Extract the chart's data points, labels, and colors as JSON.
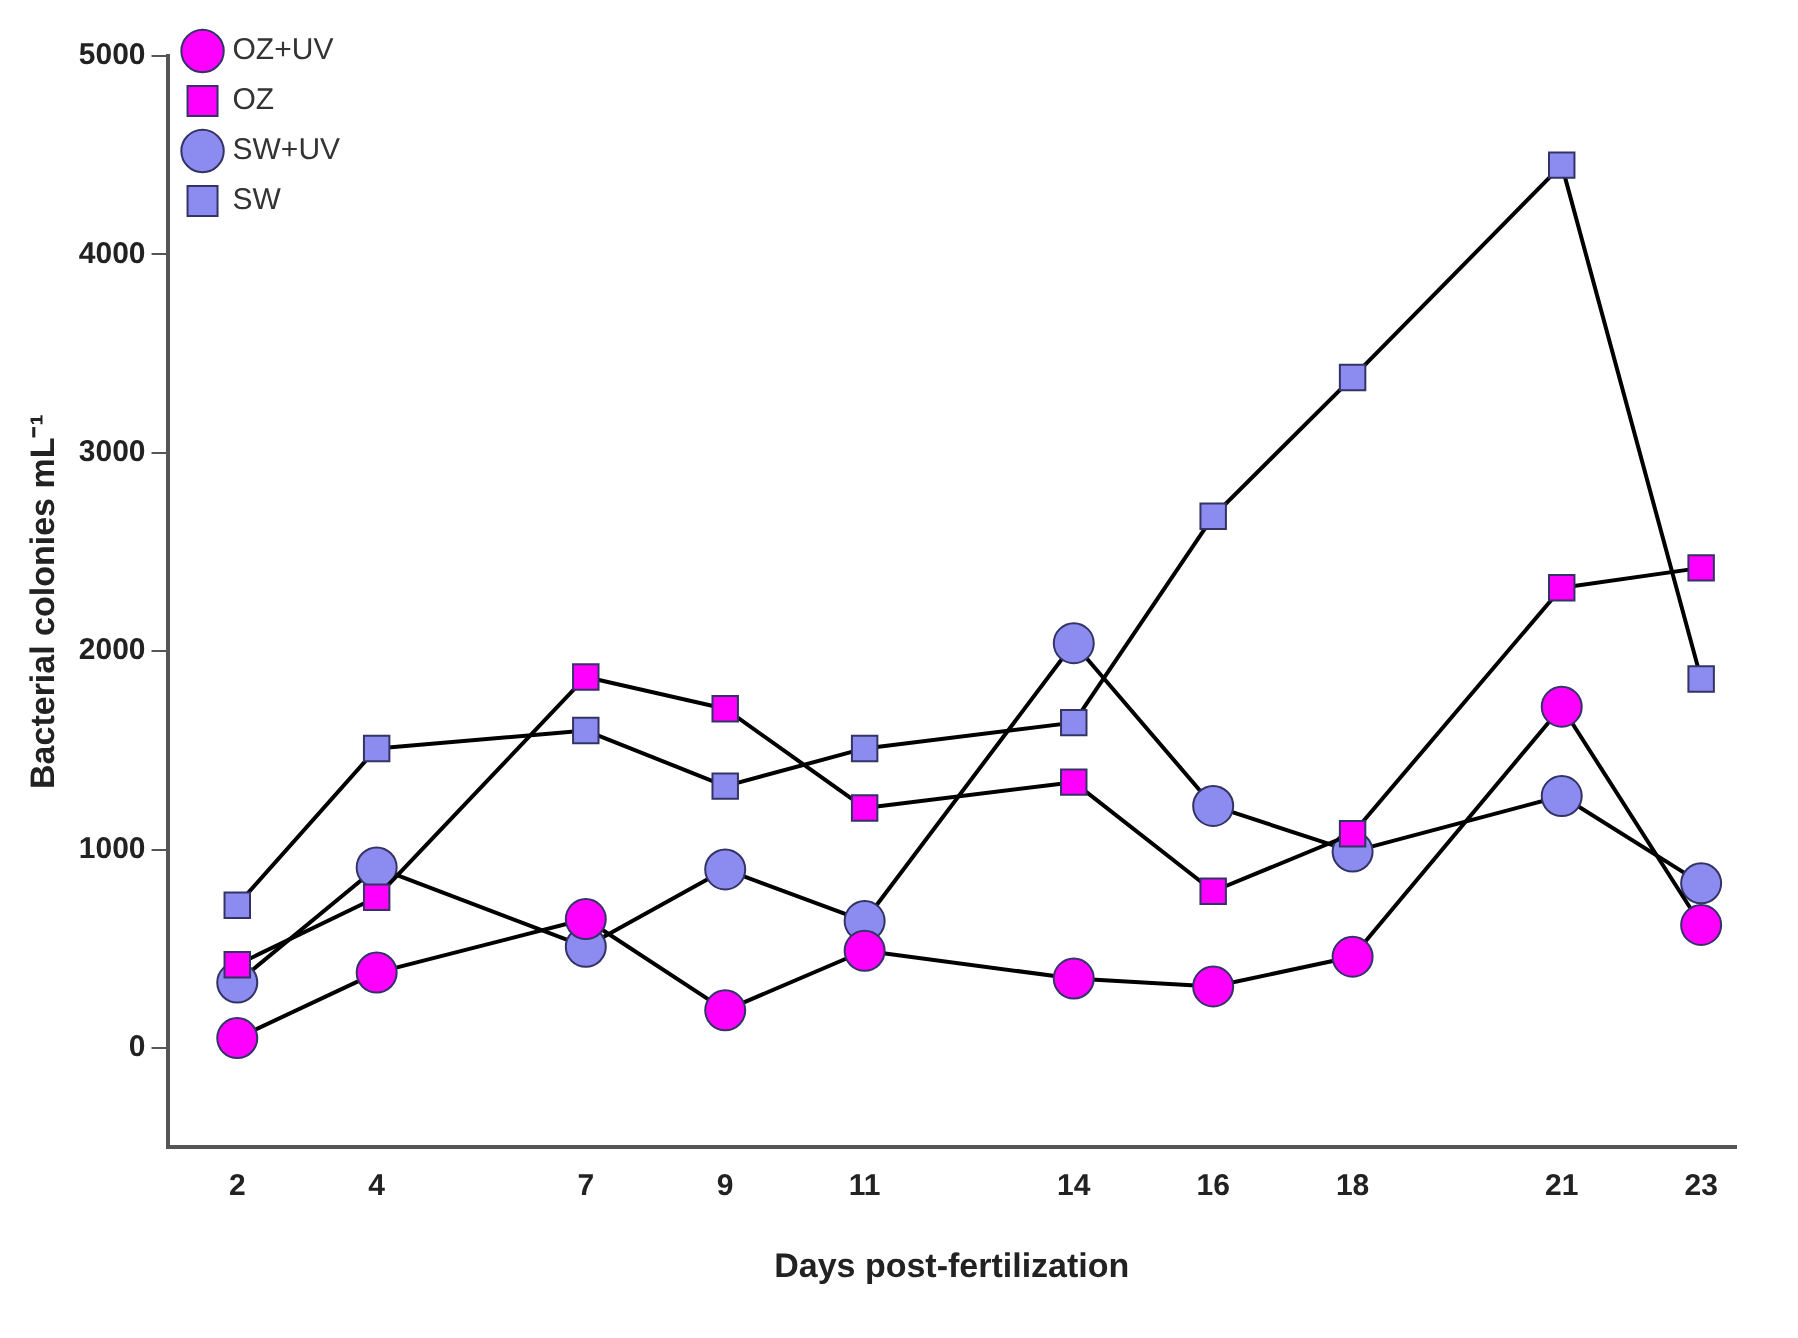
{
  "chart_data": {
    "type": "line",
    "xlabel": "Days post-fertilization",
    "ylabel": "Bacterial colonies mL⁻¹",
    "x": [
      2,
      4,
      7,
      9,
      11,
      14,
      16,
      18,
      21,
      23
    ],
    "xlim": [
      1,
      23.5
    ],
    "xticks": [
      2,
      4,
      7,
      9,
      11,
      14,
      16,
      18,
      21,
      23
    ],
    "ylim": [
      -500,
      5000
    ],
    "yticks": [
      0,
      1000,
      2000,
      3000,
      4000,
      5000
    ],
    "grid": false,
    "legend": "top left",
    "line_style": "solid",
    "series": [
      {
        "name": "OZ+UV",
        "color": "#ff00ff",
        "marker": "circle",
        "values": [
          50,
          380,
          650,
          190,
          490,
          350,
          310,
          460,
          1720,
          620
        ]
      },
      {
        "name": "OZ",
        "color": "#ff00ff",
        "marker": "square",
        "values": [
          420,
          760,
          1870,
          1710,
          1210,
          1340,
          790,
          1080,
          2320,
          2420
        ]
      },
      {
        "name": "SW+UV",
        "color": "#8c8cf0",
        "marker": "circle",
        "values": [
          330,
          910,
          510,
          900,
          640,
          2040,
          1220,
          990,
          1270,
          830
        ]
      },
      {
        "name": "SW",
        "color": "#8c8cf0",
        "marker": "square",
        "values": [
          720,
          1510,
          1600,
          1320,
          1510,
          1640,
          2680,
          3380,
          4450,
          1860
        ]
      }
    ]
  }
}
